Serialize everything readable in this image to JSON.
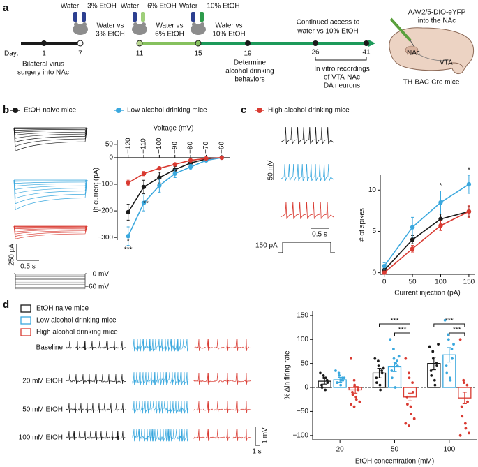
{
  "panel_labels": {
    "a": "a",
    "b": "b",
    "c": "c",
    "d": "d"
  },
  "timeline": {
    "bottle_labels": [
      "Water",
      "3% EtOH",
      "Water",
      "6% EtOH",
      "Water",
      "10% EtOH"
    ],
    "choices": [
      [
        "Water vs",
        "3% EtOH"
      ],
      [
        "Water vs",
        "6% EtOH"
      ],
      [
        "Water vs",
        "10% EtOH"
      ]
    ],
    "continued": [
      "Continued access to",
      "water vs 10% EtOH"
    ],
    "day_label": "Day:",
    "days": [
      "1",
      "7",
      "11",
      "15",
      "19",
      "26",
      "41"
    ],
    "surgery": [
      "Bilateral virus",
      "surgery into NAc"
    ],
    "determine": [
      "Determine",
      "alcohol drinking",
      "behaviors"
    ],
    "recordings": [
      "In vitro recordings",
      "of VTA-NAc",
      "DA neurons"
    ]
  },
  "brain": {
    "injection": [
      "AAV2/5-DIO-eYFP",
      "into the NAc"
    ],
    "nac": "NAc",
    "vta": "VTA",
    "mice": "TH-BAC-Cre mice"
  },
  "traces": {
    "b": {
      "current_scale": "250 pA",
      "time_scale": "0.5 s",
      "v_top": "0 mV",
      "v_bottom": "−60 mV"
    },
    "c": {
      "voltage_scale": "50 mV",
      "current_step": "150 pA",
      "time_scale": "0.5 s"
    },
    "d": {
      "rows": [
        "Baseline",
        "20 mM EtOH",
        "50 mM EtOH",
        "100 mM EtOH"
      ],
      "voltage_scale": "1 mV",
      "time_scale": "1 s"
    }
  },
  "chart_data": [
    {
      "type": "line",
      "xlabel": "Voltage (mV)",
      "ylabel": "Ih current (pA)",
      "x": [
        -120,
        -110,
        -100,
        -90,
        -80,
        -70,
        -60
      ],
      "xlim": [
        -127,
        -55
      ],
      "xticks": [
        {
          "value": -120,
          "label": "−120"
        },
        {
          "value": -110,
          "label": "−110"
        },
        {
          "value": -100,
          "label": "−100"
        },
        {
          "value": -90,
          "label": "−90"
        },
        {
          "value": -80,
          "label": "−80"
        },
        {
          "value": -70,
          "label": "−70"
        },
        {
          "value": -60,
          "label": "−60"
        }
      ],
      "ylim": [
        -310,
        68
      ],
      "yticks": [
        50,
        0,
        {
          "value": -100,
          "label": "−100"
        },
        {
          "value": -200,
          "label": "−200"
        },
        {
          "value": -300,
          "label": "−300"
        }
      ],
      "series": [
        {
          "name": "EtOH naive mice",
          "color": "#1a1a1a",
          "values": [
            -205,
            -110,
            -75,
            -45,
            -20,
            -5,
            0
          ],
          "errors": [
            30,
            25,
            20,
            12,
            8,
            4,
            2
          ]
        },
        {
          "name": "Low alcohol drinking mice",
          "color": "#3aa8de",
          "values": [
            -295,
            -170,
            -105,
            -60,
            -35,
            -10,
            0
          ],
          "errors": [
            35,
            30,
            25,
            15,
            10,
            5,
            2
          ]
        },
        {
          "color": "#d93a31",
          "values": [
            -95,
            -60,
            -40,
            -25,
            -10,
            -3,
            0
          ],
          "errors": [
            10,
            8,
            6,
            5,
            4,
            3,
            2
          ]
        }
      ],
      "annotations": [
        "*",
        "***",
        "**"
      ]
    },
    {
      "type": "line",
      "xlabel": "Current injection (pA)",
      "ylabel": "# of spikes",
      "x": [
        0,
        50,
        100,
        150
      ],
      "xlim": [
        -7,
        160
      ],
      "xticks": [
        0,
        50,
        100,
        150
      ],
      "ylim": [
        -0.2,
        11.8
      ],
      "yticks": [
        0,
        5,
        10
      ],
      "series": [
        {
          "color": "#1a1a1a",
          "values": [
            0.3,
            4,
            6.5,
            7.4
          ],
          "errors": [
            0.2,
            0.5,
            0.6,
            0.6
          ]
        },
        {
          "color": "#3aa8de",
          "values": [
            0.8,
            5.5,
            8.5,
            10.7
          ],
          "errors": [
            0.4,
            1.2,
            1.4,
            1.1
          ]
        },
        {
          "name": "High alcohol drinking mice",
          "color": "#d93a31",
          "values": [
            0,
            2.9,
            5.7,
            7.4
          ],
          "errors": [
            0.2,
            0.4,
            0.6,
            0.7
          ]
        }
      ],
      "annotations": [
        "*",
        "*"
      ]
    },
    {
      "type": "bar",
      "xlabel": "EtOH concentration (mM)",
      "ylabel": "% Δin firing rate",
      "categories": [
        "20",
        "50",
        "100"
      ],
      "ylim": [
        -109,
        160
      ],
      "yticks": [
        150,
        100,
        50,
        0,
        {
          "value": -50,
          "label": "−50"
        },
        {
          "value": -100,
          "label": "−100"
        }
      ],
      "series": [
        {
          "name": "EtOH naive mice",
          "color": "#1a1a1a",
          "values": [
            13,
            30,
            50
          ],
          "errors": [
            6,
            10,
            13
          ],
          "points": [
            [
              30,
              25,
              20,
              15,
              10,
              5,
              0,
              -5,
              20
            ],
            [
              60,
              55,
              45,
              35,
              30,
              20,
              10,
              5,
              -5,
              40
            ],
            [
              85,
              75,
              60,
              50,
              45,
              35,
              25,
              15,
              5,
              90
            ]
          ]
        },
        {
          "name": "Low alcohol drinking mice",
          "color": "#3aa8de",
          "values": [
            16,
            43,
            68
          ],
          "errors": [
            5,
            10,
            15
          ],
          "points": [
            [
              35,
              30,
              25,
              20,
              15,
              10,
              10,
              5,
              15,
              20
            ],
            [
              100,
              80,
              60,
              55,
              45,
              35,
              20,
              0,
              50,
              65
            ],
            [
              140,
              110,
              100,
              80,
              60,
              45,
              30,
              20,
              15,
              90
            ]
          ]
        },
        {
          "name": "High alcohol drinking mice",
          "color": "#d93a31",
          "values": [
            -5,
            -20,
            -22
          ],
          "errors": [
            7,
            8,
            12
          ],
          "points": [
            [
              60,
              15,
              5,
              0,
              -5,
              -10,
              -15,
              -20,
              -25,
              -30,
              -35,
              -40
            ],
            [
              60,
              30,
              20,
              10,
              -10,
              -20,
              -35,
              -40,
              -55,
              -65,
              -75,
              -80
            ],
            [
              100,
              15,
              10,
              5,
              -30,
              -40,
              -60,
              -75,
              -85,
              -95,
              -100
            ]
          ]
        }
      ],
      "annotations": [
        "***",
        "***",
        "***",
        "***"
      ]
    }
  ]
}
